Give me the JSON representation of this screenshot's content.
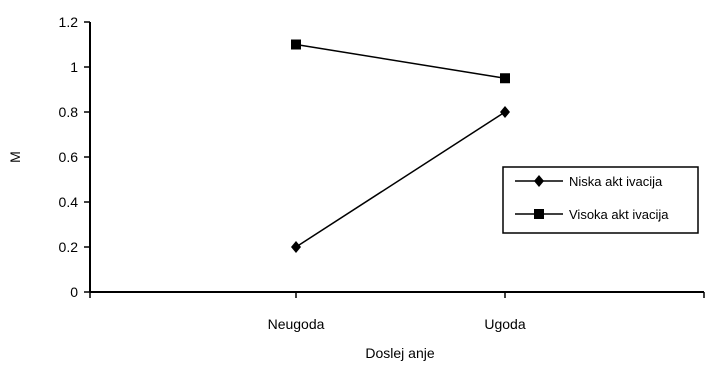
{
  "chart_data": {
    "type": "line",
    "categories": [
      "Neugoda",
      "Ugoda"
    ],
    "series": [
      {
        "name": "Niska akt ivacija",
        "marker": "diamond",
        "values": [
          0.2,
          0.8
        ]
      },
      {
        "name": "Visoka akt ivacija",
        "marker": "square",
        "values": [
          1.1,
          0.95
        ]
      }
    ],
    "y_ticks": [
      "0",
      "0.2",
      "0.4",
      "0.6",
      "0.8",
      "1",
      "1.2"
    ],
    "ylim": [
      0,
      1.2
    ],
    "xlabel": "Doslej anje",
    "ylabel": "M",
    "legend_position": "right",
    "grid": false,
    "colors": {
      "line": "#000000",
      "background": "#ffffff"
    }
  }
}
